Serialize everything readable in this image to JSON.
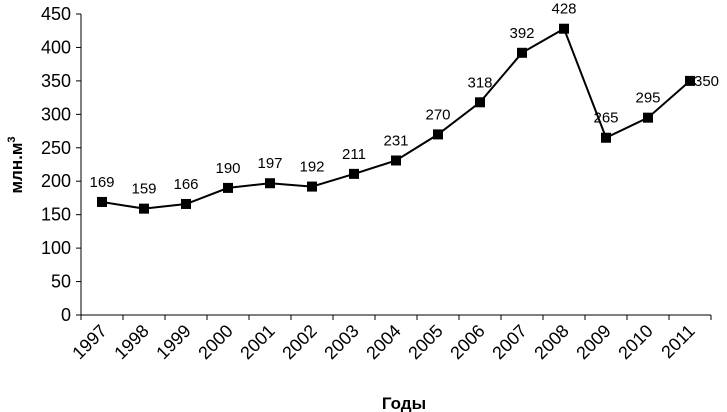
{
  "chart_data": {
    "type": "line",
    "title": "",
    "xlabel": "Годы",
    "ylabel": "млн.м",
    "ylabel_superscript": "3",
    "ylim": [
      0,
      450
    ],
    "yticks": [
      0,
      50,
      100,
      150,
      200,
      250,
      300,
      350,
      400,
      450
    ],
    "categories": [
      "1997",
      "1998",
      "1999",
      "2000",
      "2001",
      "2002",
      "2003",
      "2004",
      "2005",
      "2006",
      "2007",
      "2008",
      "2009",
      "2010",
      "2011"
    ],
    "series": [
      {
        "values": [
          169,
          159,
          166,
          190,
          197,
          192,
          211,
          231,
          270,
          318,
          392,
          428,
          265,
          295,
          350
        ],
        "color": "#000000",
        "marker": "square"
      }
    ],
    "data_labels": [
      "169",
      "159",
      "166",
      "190",
      "197",
      "192",
      "211",
      "231",
      "270",
      "318",
      "392",
      "428",
      "265",
      "295",
      "350"
    ],
    "grid": false,
    "legend": "none"
  }
}
